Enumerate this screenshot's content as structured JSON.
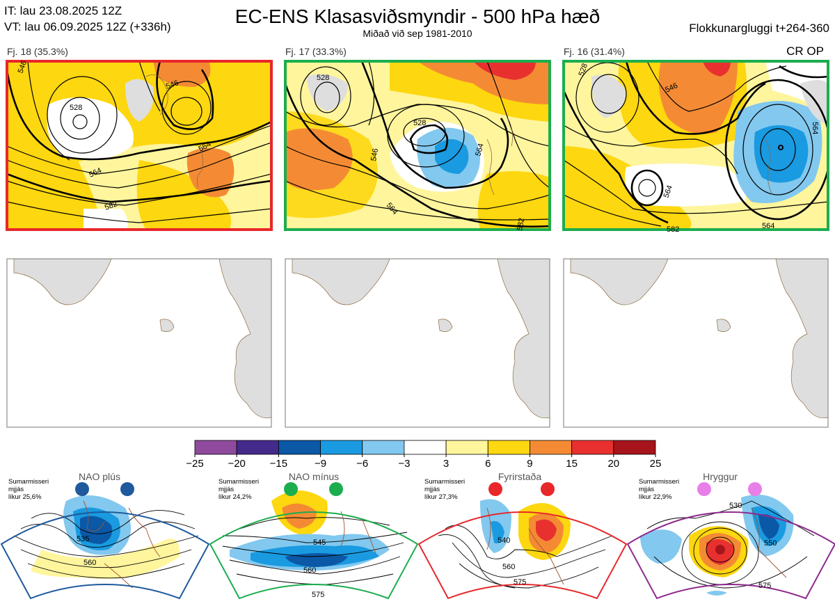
{
  "header": {
    "init_time": "IT: lau 23.08.2025 12Z",
    "valid_time": "VT: lau 06.09.2025 12Z  (+336h)",
    "title": "EC-ENS Klasasviðsmyndir - 500 hPa hæð",
    "subtitle": "Miðað við sep 1981-2010",
    "window": "Flokkunargluggi t+264-360",
    "crop_label": "CR OP"
  },
  "colors": {
    "red": "#e8272b",
    "green": "#1cad4e",
    "blue": "#1f5a9c",
    "purple": "#8e2a8e",
    "pink": "#e87ee8",
    "land": "#dedede",
    "coast": "#8c6b3f"
  },
  "clusters": [
    {
      "label": "Fj. 18 (35.3%)",
      "border": "red",
      "contours": [
        "528",
        "546",
        "546",
        "564",
        "564",
        "582"
      ]
    },
    {
      "label": "Fj. 17 (33.3%)",
      "border": "green",
      "contours": [
        "528",
        "528",
        "546",
        "564",
        "564",
        "582"
      ]
    },
    {
      "label": "Fj. 16 (31.4%)",
      "border": "green",
      "contours": [
        "528",
        "546",
        "564",
        "564",
        "582",
        "564"
      ]
    }
  ],
  "colorbar": {
    "ticks": [
      "−25",
      "−20",
      "−15",
      "−9",
      "−6",
      "−3",
      "3",
      "6",
      "9",
      "15",
      "20",
      "25"
    ],
    "colors": [
      "#8f4a9d",
      "#442a8b",
      "#0b58a6",
      "#1a9ae0",
      "#82c8ef",
      "#ffffff",
      "#fff59d",
      "#fdd70f",
      "#f48b34",
      "#e8312f",
      "#a7141b"
    ]
  },
  "regimes": [
    {
      "name": "NAO plús",
      "season": "Sumarmisseri",
      "mean": "mjjás",
      "likur": "líkur 25,6%",
      "color": "blue",
      "contours": [
        "535",
        "560"
      ]
    },
    {
      "name": "NAO mínus",
      "season": "Sumarmisseri",
      "mean": "mjjás",
      "likur": "líkur 24,2%",
      "color": "green",
      "contours": [
        "545",
        "560",
        "575"
      ]
    },
    {
      "name": "Fyrirstaða",
      "season": "Sumarmisseri",
      "mean": "mjjás",
      "likur": "líkur 27,3%",
      "color": "red",
      "contours": [
        "540",
        "560",
        "575"
      ]
    },
    {
      "name": "Hryggur",
      "season": "Sumarmisseri",
      "mean": "mjjás",
      "likur": "líkur 22,9%",
      "color": "purple",
      "contours": [
        "530",
        "550",
        "575"
      ]
    }
  ]
}
